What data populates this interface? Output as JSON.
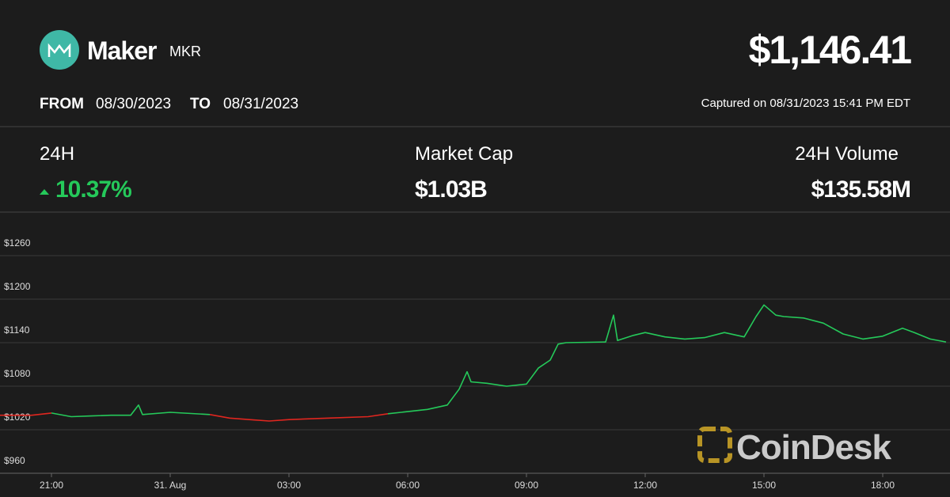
{
  "header": {
    "name": "Maker",
    "symbol": "MKR",
    "price": "$1,146.41",
    "from_label": "FROM",
    "from_date": "08/30/2023",
    "to_label": "TO",
    "to_date": "08/31/2023",
    "captured": "Captured on 08/31/2023 15:41 PM EDT"
  },
  "stats": [
    {
      "label": "24H",
      "value": "10.37%"
    },
    {
      "label": "Market Cap",
      "value": "$1.03B"
    },
    {
      "label": "24H Volume",
      "value": "$135.58M"
    }
  ],
  "watermark": "CoinDesk",
  "chart_data": {
    "type": "line",
    "x": [
      19.7,
      20.5,
      21.0,
      21.5,
      22.0,
      22.5,
      23.0,
      23.2,
      23.3,
      24.0,
      25.0,
      25.5,
      26.0,
      26.5,
      27.0,
      28.0,
      29.0,
      29.5,
      30.0,
      30.5,
      31.0,
      31.3,
      31.5,
      31.6,
      32.0,
      32.5,
      33.0,
      33.3,
      33.6,
      33.8,
      34.0,
      35.0,
      35.2,
      35.3,
      35.7,
      36.0,
      36.5,
      37.0,
      37.5,
      38.0,
      38.5,
      38.8,
      39.0,
      39.3,
      39.5,
      40.0,
      40.5,
      41.0,
      41.5,
      42.0,
      42.5,
      42.8,
      43.2,
      43.6
    ],
    "series": [
      {
        "color": "#e0261f",
        "values": [
          1040,
          1040,
          1043,
          null,
          null,
          null,
          null,
          null,
          null,
          null,
          1041,
          1036,
          1034,
          1032,
          1034,
          1036,
          1038,
          1042,
          null,
          null,
          null,
          null,
          null,
          null,
          null,
          null,
          null,
          null,
          null,
          null,
          null,
          null,
          null,
          null,
          null,
          null,
          null,
          null,
          null,
          null,
          null,
          null,
          null,
          null,
          null,
          null,
          null,
          null,
          null,
          null,
          null,
          null,
          null,
          null
        ]
      },
      {
        "color": "#25c95a",
        "values": [
          null,
          null,
          1043,
          1038,
          1039,
          1040,
          1040,
          1054,
          1041,
          1044,
          1041,
          null,
          null,
          null,
          null,
          null,
          null,
          1042,
          1045,
          1048,
          1054,
          1076,
          1100,
          1086,
          1084,
          1080,
          1083,
          1105,
          1116,
          1138,
          1140,
          1141,
          1178,
          1143,
          1150,
          1154,
          1148,
          1145,
          1147,
          1154,
          1148,
          1176,
          1192,
          1178,
          1176,
          1174,
          1167,
          1152,
          1145,
          1149,
          1160,
          1154,
          1145,
          1141
        ]
      }
    ],
    "xlim": [
      19.7,
      43.7
    ],
    "xticks": [
      {
        "value": 21,
        "label": "21:00"
      },
      {
        "value": 24,
        "label": "31. Aug"
      },
      {
        "value": 27,
        "label": "03:00"
      },
      {
        "value": 30,
        "label": "06:00"
      },
      {
        "value": 33,
        "label": "09:00"
      },
      {
        "value": 36,
        "label": "12:00"
      },
      {
        "value": 39,
        "label": "15:00"
      },
      {
        "value": 42,
        "label": "18:00"
      }
    ],
    "ylim": [
      960,
      1320
    ],
    "yticks": [
      {
        "value": 960,
        "label": "$960"
      },
      {
        "value": 1020,
        "label": "$1020"
      },
      {
        "value": 1080,
        "label": "$1080"
      },
      {
        "value": 1140,
        "label": "$1140"
      },
      {
        "value": 1200,
        "label": "$1200"
      },
      {
        "value": 1260,
        "label": "$1260"
      }
    ],
    "grid": true
  }
}
